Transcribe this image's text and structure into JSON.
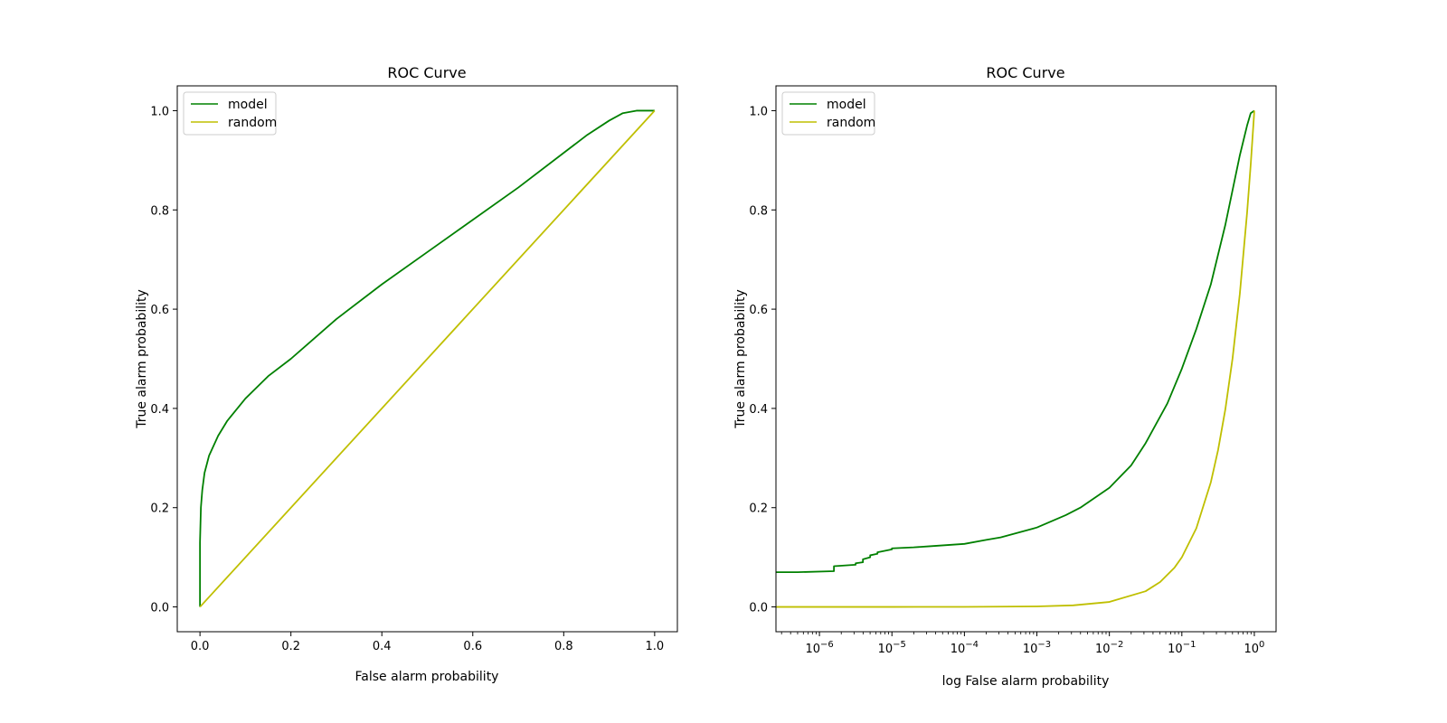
{
  "chart_data": [
    {
      "type": "line",
      "title": "ROC Curve",
      "xlabel": "False alarm probability",
      "ylabel": "True alarm probability",
      "xscale": "linear",
      "xlim": [
        -0.05,
        1.05
      ],
      "ylim": [
        -0.05,
        1.05
      ],
      "xticks": [
        0.0,
        0.2,
        0.4,
        0.6,
        0.8,
        1.0
      ],
      "xtick_labels": [
        "0.0",
        "0.2",
        "0.4",
        "0.6",
        "0.8",
        "1.0"
      ],
      "yticks": [
        0.0,
        0.2,
        0.4,
        0.6,
        0.8,
        1.0
      ],
      "ytick_labels": [
        "0.0",
        "0.2",
        "0.4",
        "0.6",
        "0.8",
        "1.0"
      ],
      "legend_position": "upper-left",
      "series": [
        {
          "name": "model",
          "color": "#008000",
          "x": [
            0,
            0,
            0.002,
            0.005,
            0.01,
            0.02,
            0.04,
            0.06,
            0.1,
            0.15,
            0.2,
            0.3,
            0.4,
            0.5,
            0.6,
            0.7,
            0.8,
            0.85,
            0.9,
            0.93,
            0.96,
            0.98,
            1.0
          ],
          "y": [
            0,
            0.13,
            0.2,
            0.235,
            0.27,
            0.305,
            0.345,
            0.375,
            0.42,
            0.465,
            0.5,
            0.58,
            0.65,
            0.715,
            0.78,
            0.845,
            0.915,
            0.95,
            0.98,
            0.995,
            1.0,
            1.0,
            1.0
          ]
        },
        {
          "name": "random",
          "color": "#bfbf00",
          "x": [
            0,
            1
          ],
          "y": [
            0,
            1
          ]
        }
      ]
    },
    {
      "type": "line",
      "title": "ROC Curve",
      "xlabel": "log False alarm probability",
      "ylabel": "True alarm probability",
      "xscale": "log",
      "xlim_log10": [
        -6.6,
        0.3
      ],
      "ylim": [
        -0.05,
        1.05
      ],
      "xtick_exponents": [
        -6,
        -5,
        -4,
        -3,
        -2,
        -1,
        0
      ],
      "xtick_base": "10",
      "yticks": [
        0.0,
        0.2,
        0.4,
        0.6,
        0.8,
        1.0
      ],
      "ytick_labels": [
        "0.0",
        "0.2",
        "0.4",
        "0.6",
        "0.8",
        "1.0"
      ],
      "legend_position": "upper-left",
      "series": [
        {
          "name": "model",
          "color": "#008000",
          "log10_x": [
            -6.6,
            -6.3,
            -5.8,
            -5.8,
            -5.5,
            -5.5,
            -5.4,
            -5.4,
            -5.3,
            -5.3,
            -5.2,
            -5.2,
            -5.1,
            -5.0,
            -5.0,
            -4.7,
            -4.5,
            -4.0,
            -3.7,
            -3.5,
            -3.0,
            -2.6,
            -2.4,
            -2.0,
            -1.7,
            -1.5,
            -1.2,
            -1.0,
            -0.8,
            -0.6,
            -0.4,
            -0.3,
            -0.2,
            -0.1,
            -0.05,
            0
          ],
          "y": [
            0.07,
            0.07,
            0.072,
            0.082,
            0.085,
            0.088,
            0.09,
            0.096,
            0.1,
            0.104,
            0.107,
            0.11,
            0.113,
            0.116,
            0.118,
            0.12,
            0.122,
            0.127,
            0.135,
            0.14,
            0.16,
            0.185,
            0.2,
            0.24,
            0.285,
            0.33,
            0.41,
            0.48,
            0.56,
            0.65,
            0.77,
            0.84,
            0.91,
            0.97,
            0.995,
            1.0
          ]
        },
        {
          "name": "random",
          "color": "#bfbf00",
          "log10_x": [
            -6.6,
            -6,
            -5,
            -4,
            -3,
            -2.5,
            -2,
            -1.5,
            -1.3,
            -1.1,
            -1.0,
            -0.8,
            -0.6,
            -0.5,
            -0.4,
            -0.3,
            -0.2,
            -0.1,
            -0.05,
            0
          ],
          "y": [
            0.0,
            1e-06,
            1e-05,
            0.0001,
            0.001,
            0.00316,
            0.01,
            0.0316,
            0.0501,
            0.0794,
            0.1,
            0.1585,
            0.2512,
            0.3162,
            0.3981,
            0.5012,
            0.631,
            0.7943,
            0.8913,
            1.0
          ]
        }
      ]
    }
  ]
}
